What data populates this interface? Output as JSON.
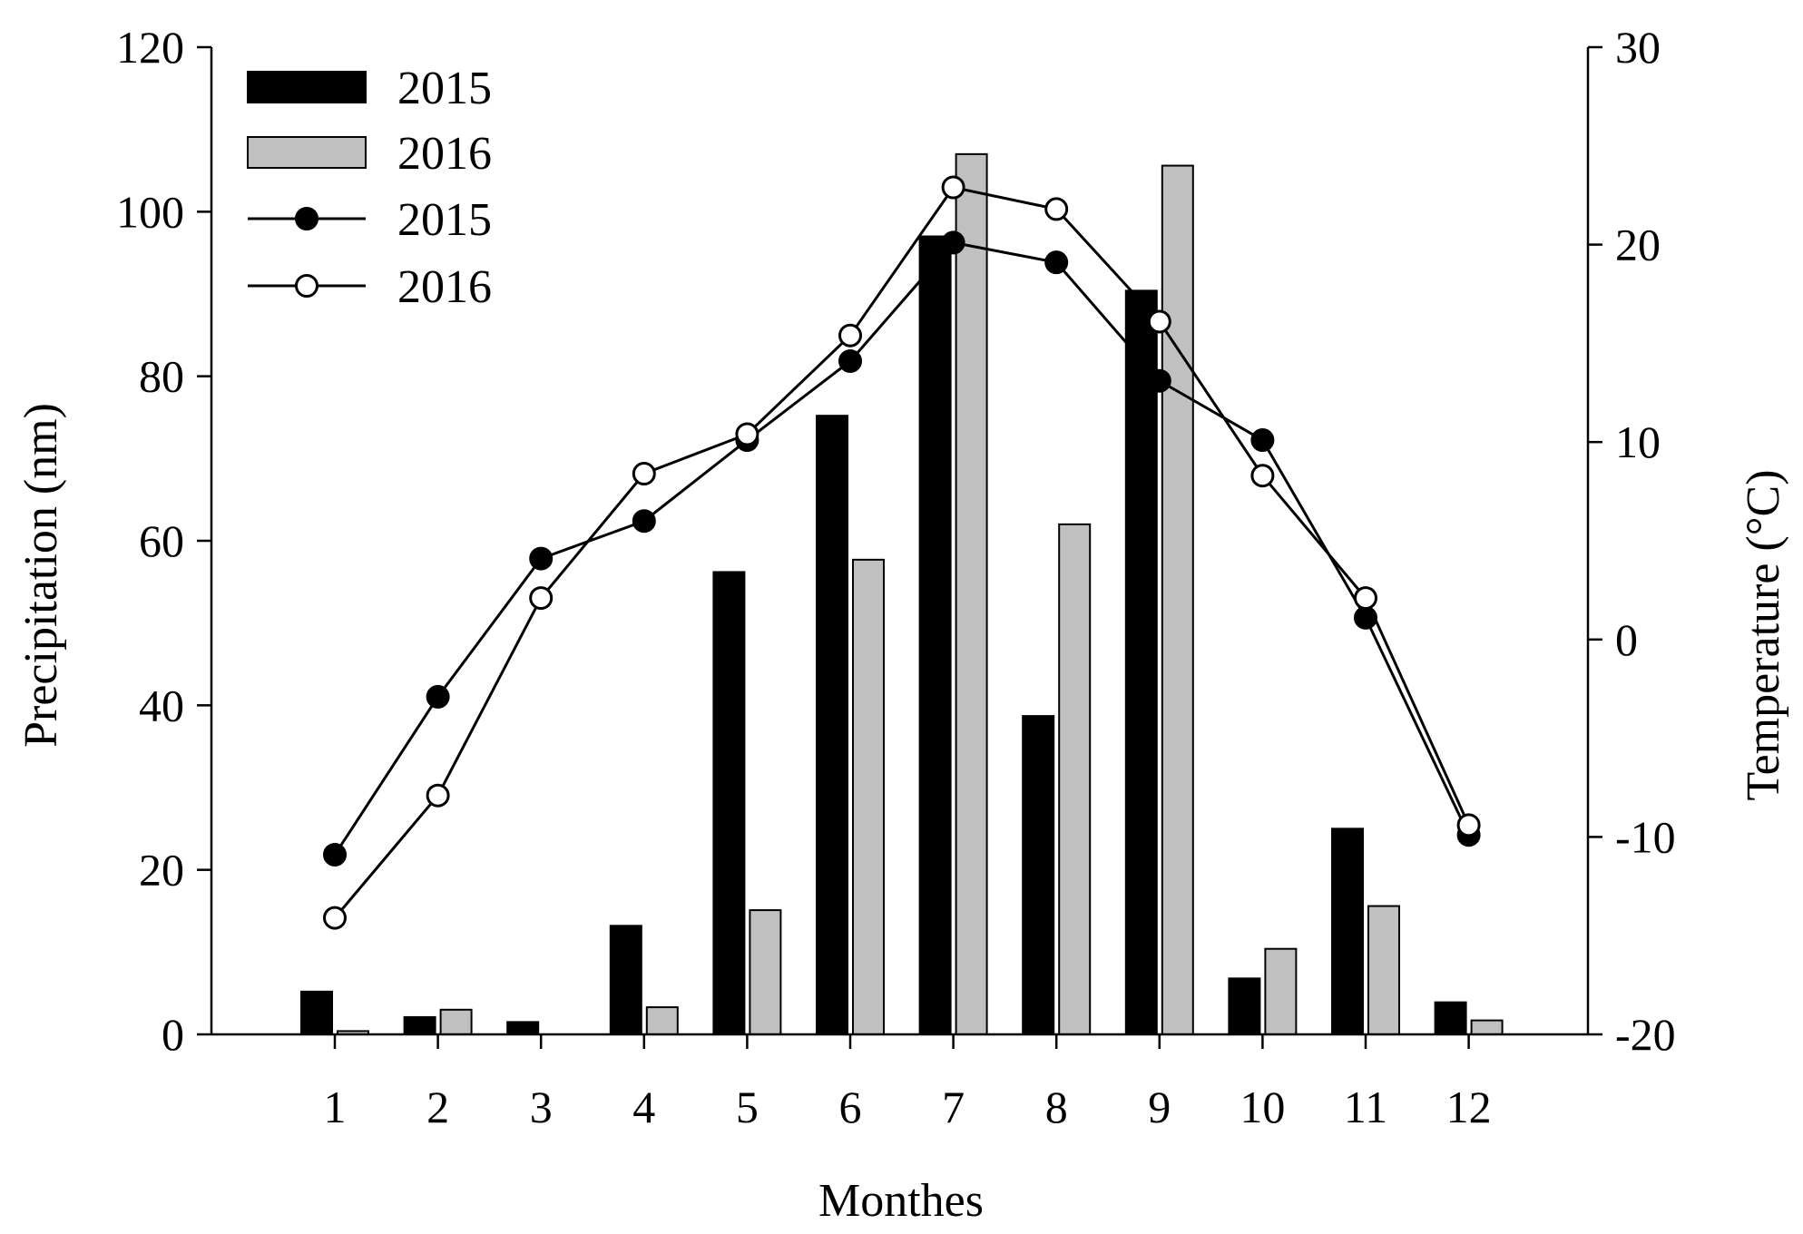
{
  "chart_data": {
    "type": "bar",
    "categories": [
      "1",
      "2",
      "3",
      "4",
      "5",
      "6",
      "7",
      "8",
      "9",
      "10",
      "11",
      "12"
    ],
    "xlabel": "Monthes",
    "ylabel": "Precipitation (nm)",
    "y2label": "Temperature (°C)",
    "ylim": [
      0,
      120
    ],
    "y2lim": [
      -20,
      30
    ],
    "yticks": [
      "0",
      "20",
      "40",
      "60",
      "80",
      "100",
      "120"
    ],
    "y2ticks": [
      "-20",
      "-10",
      "0",
      "10",
      "20",
      "30"
    ],
    "grid": false,
    "legend_position": "top-left",
    "bar_series": [
      {
        "name": "2015",
        "color": "#000000",
        "values": [
          5.2,
          2.1,
          1.5,
          13.2,
          56.2,
          75.2,
          97.0,
          38.7,
          90.4,
          6.8,
          25.0,
          3.9
        ]
      },
      {
        "name": "2016",
        "color": "#c0c0c0",
        "values": [
          0.4,
          3.0,
          0.0,
          3.3,
          15.1,
          57.7,
          107.0,
          62.0,
          105.6,
          10.4,
          15.6,
          1.7
        ]
      }
    ],
    "line_series": [
      {
        "name": "2015",
        "marker": "filled-circle",
        "axis": "right",
        "values": [
          -10.9,
          -2.9,
          4.1,
          6.0,
          10.1,
          14.1,
          20.1,
          19.1,
          13.1,
          10.1,
          1.1,
          -9.9
        ]
      },
      {
        "name": "2016",
        "marker": "open-circle",
        "axis": "right",
        "values": [
          -14.1,
          -7.9,
          2.1,
          8.4,
          10.4,
          15.4,
          22.9,
          21.8,
          16.1,
          8.3,
          2.1,
          -9.4
        ]
      }
    ]
  }
}
